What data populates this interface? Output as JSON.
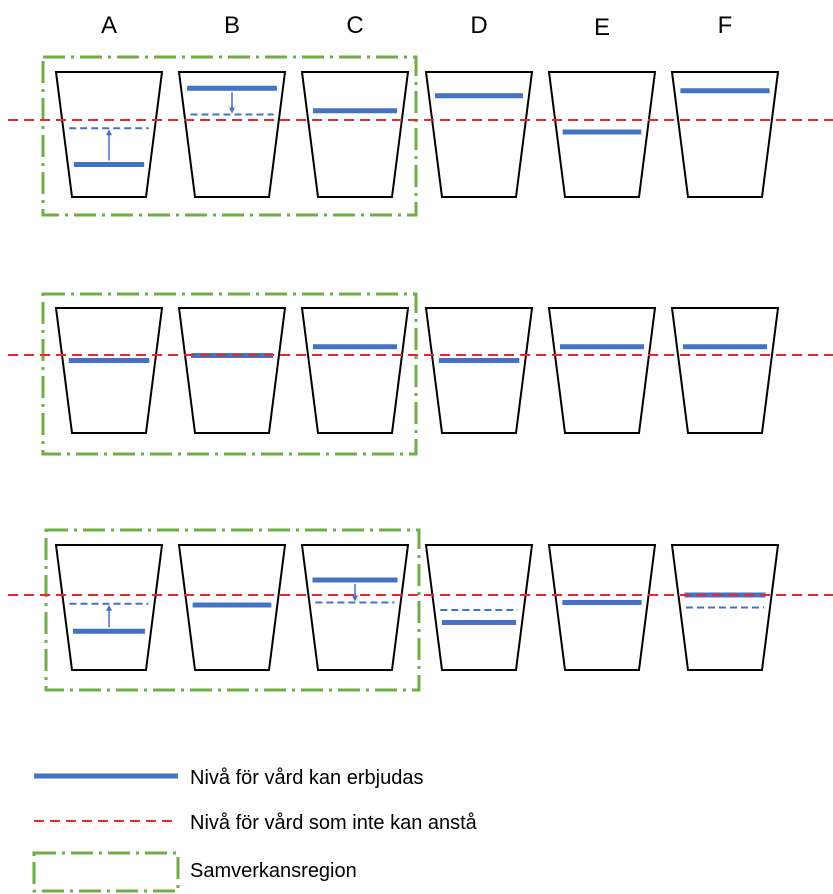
{
  "columns": [
    "A",
    "B",
    "C",
    "D",
    "E",
    "F"
  ],
  "rows": [
    {
      "name": "row-1",
      "cups": [
        {
          "label": "A",
          "solid": 0.74,
          "dashed": 0.45,
          "arrow": "up"
        },
        {
          "label": "B",
          "solid": 0.13,
          "dashed": 0.34,
          "arrow": "down"
        },
        {
          "label": "C",
          "solid": 0.31
        },
        {
          "label": "D",
          "solid": 0.19
        },
        {
          "label": "E",
          "solid": 0.48
        },
        {
          "label": "F",
          "solid": 0.15
        }
      ]
    },
    {
      "name": "row-2",
      "cups": [
        {
          "label": "A",
          "solid": 0.42
        },
        {
          "label": "B",
          "solid": 0.38
        },
        {
          "label": "C",
          "solid": 0.31
        },
        {
          "label": "D",
          "solid": 0.42
        },
        {
          "label": "E",
          "solid": 0.31
        },
        {
          "label": "F",
          "solid": 0.31
        }
      ]
    },
    {
      "name": "row-3",
      "cups": [
        {
          "label": "A",
          "solid": 0.69,
          "dashed": 0.47,
          "arrow": "up"
        },
        {
          "label": "B",
          "solid": 0.48
        },
        {
          "label": "C",
          "solid": 0.28,
          "dashed": 0.46,
          "arrow": "down"
        },
        {
          "label": "D",
          "solid": 0.62,
          "dashed": 0.52
        },
        {
          "label": "E",
          "solid": 0.46
        },
        {
          "label": "F",
          "solid": 0.4,
          "dashed": 0.5
        }
      ]
    }
  ],
  "legend": {
    "solid_label": "Nivå för vård kan erbjudas",
    "dashed_label": "Nivå för vård som inte kan anstå",
    "region_label": "Samverkansregion"
  },
  "colors": {
    "care_level": "#4472C4",
    "urgent_level": "#E8282B",
    "region": "#70AD47",
    "cup": "#000000"
  }
}
